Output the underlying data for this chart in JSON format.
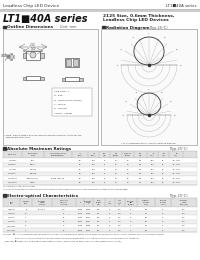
{
  "title_left": "Leadless Chip LED Device",
  "title_right": "LT1■40A series",
  "series_title": "LT1■40A series",
  "subtitle1": "2125 Size, 0.6mm Thickness,",
  "subtitle2": "Leadless Chip LED Devices",
  "section1": "Outline Dimensions",
  "section1_note": "Unit: mm",
  "section2": "Radiation Diagram",
  "section2_note": "(Typ.25°C)",
  "section3": "Absolute Maximum Ratings",
  "section3_note": "(Typ.25°C)",
  "section4": "Electro-optical Characteristics",
  "section4_note": "(Typ.25°C)",
  "bg_color": "#ffffff",
  "header_line_color": "#888888",
  "text_color": "#222222",
  "table_header_bg": "#e0e0e0",
  "alt_row_bg": "#f0f0f0",
  "border_color": "#aaaaaa"
}
